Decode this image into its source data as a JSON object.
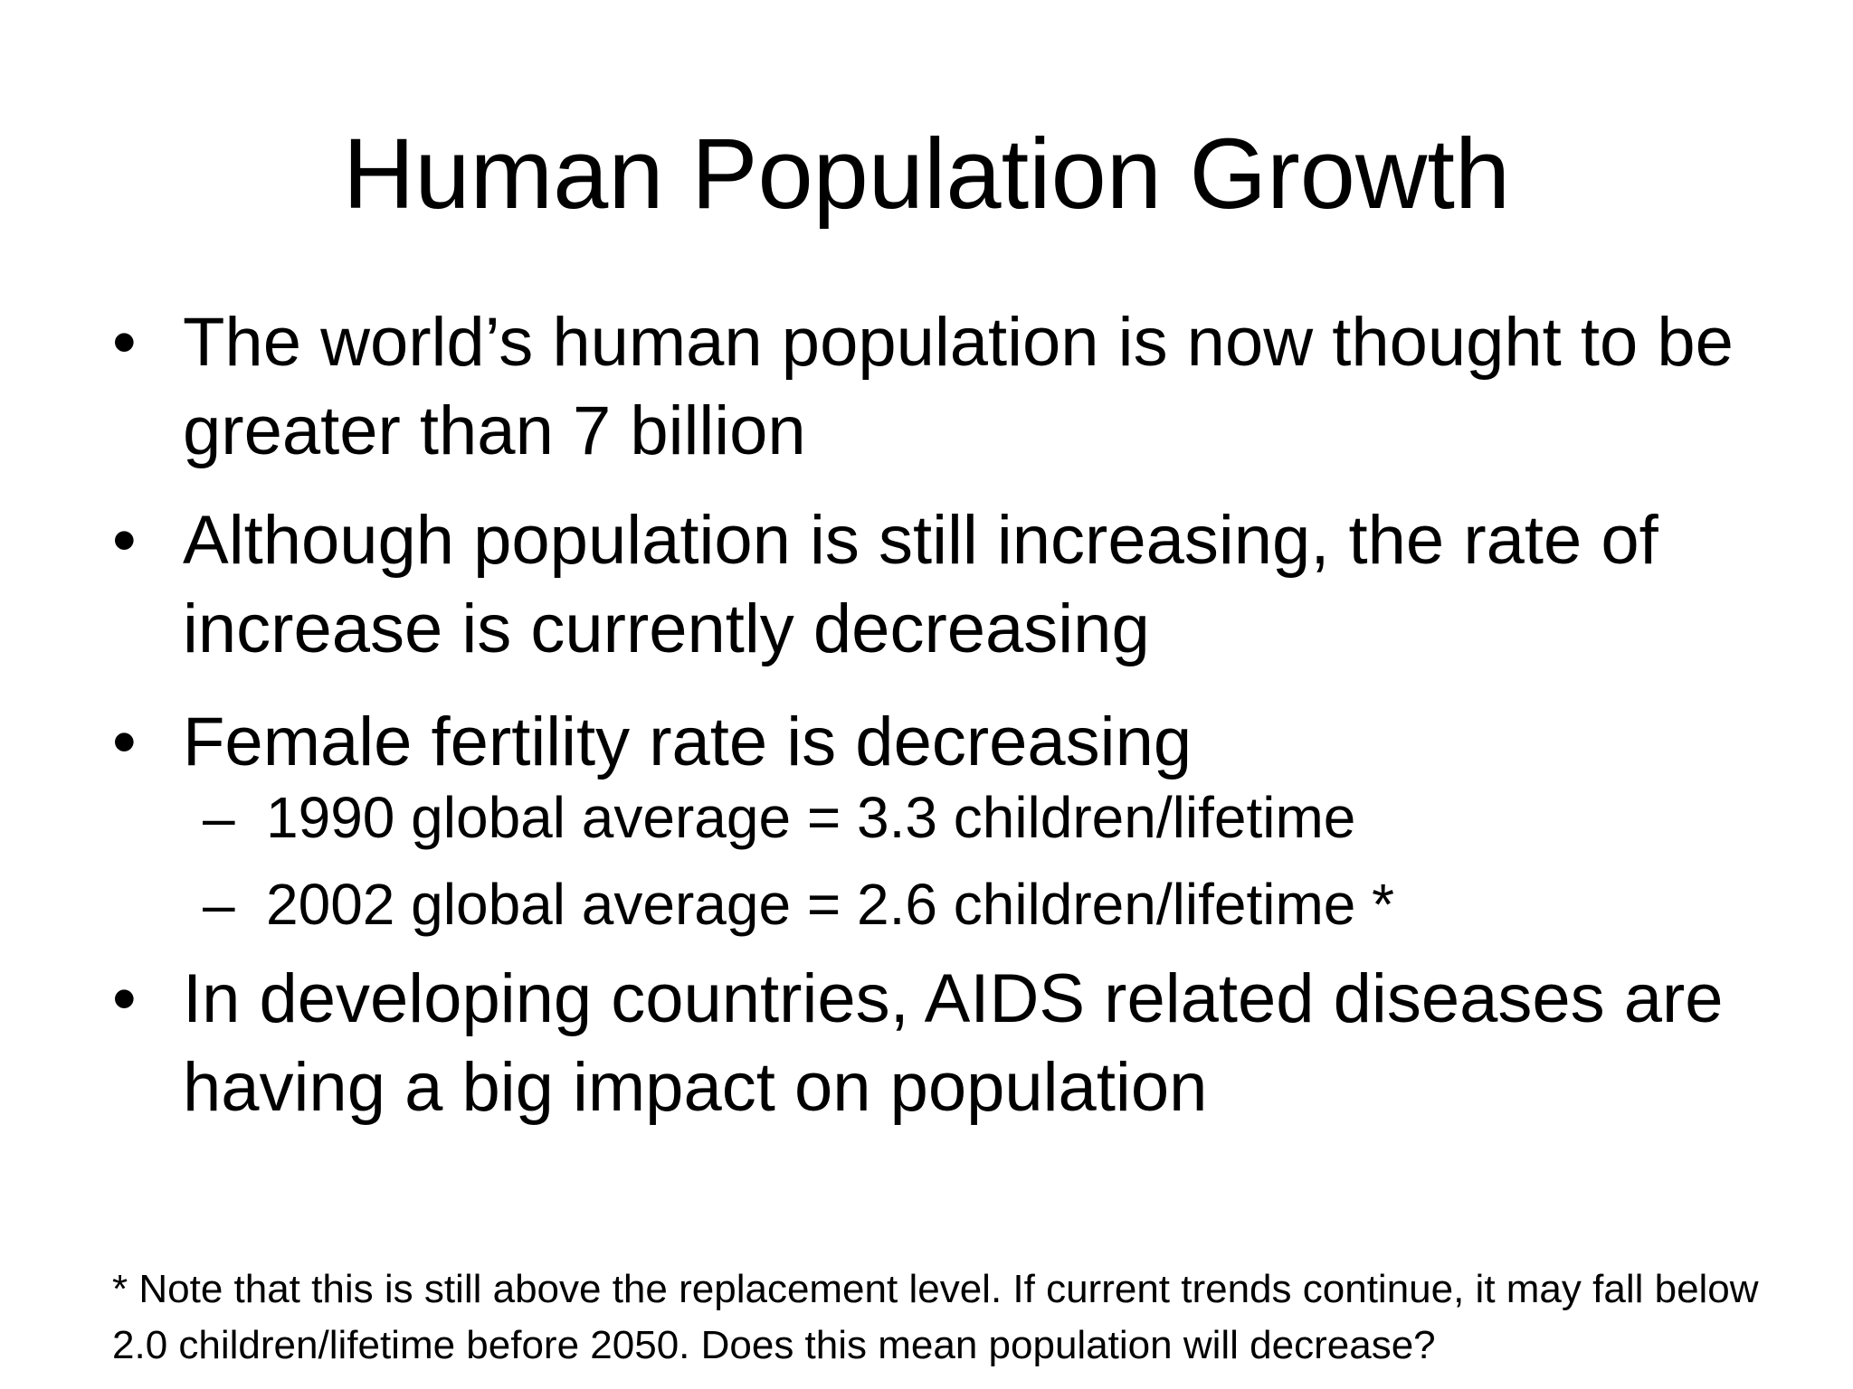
{
  "slide": {
    "title": "Human Population Growth",
    "bullets": [
      {
        "marker": "•",
        "text": "The world’s human population is now thought to be greater than 7 billion"
      },
      {
        "marker": "•",
        "text": "Although population is still increasing, the rate of increase is currently decreasing"
      },
      {
        "marker": "•",
        "text": "Female fertility rate is decreasing"
      },
      {
        "marker": "•",
        "text": "In developing countries, AIDS related diseases are having a big impact on population"
      }
    ],
    "sub_bullets": [
      {
        "marker": "–",
        "text": "1990 global average = 3.3 children/lifetime"
      },
      {
        "marker": "–",
        "text": "2002 global average = 2.6 children/lifetime *"
      }
    ],
    "footnote": "* Note that this is still above the replacement level. If current trends continue, it may fall below 2.0 children/lifetime before 2050. Does this mean population will decrease?"
  }
}
